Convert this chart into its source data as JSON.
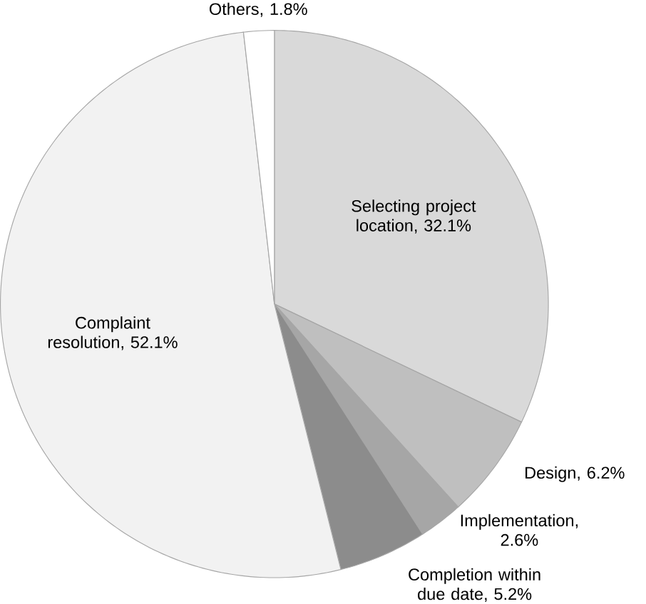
{
  "chart_data": {
    "type": "pie",
    "categories": [
      "Selecting project location",
      "Design",
      "Implementation",
      "Completion within due date",
      "Complaint resolution",
      "Others"
    ],
    "values": [
      32.1,
      6.2,
      2.6,
      5.2,
      52.1,
      1.8
    ],
    "colors": [
      "#d9d9d9",
      "#bfbfbf",
      "#a6a6a6",
      "#8c8c8c",
      "#f2f2f2",
      "#ffffff"
    ],
    "value_labels": [
      ", 32.1%",
      ", 6.2%",
      ", 2.6%",
      ", 5.2%",
      ", 52.1%",
      ", 1.8%"
    ]
  }
}
